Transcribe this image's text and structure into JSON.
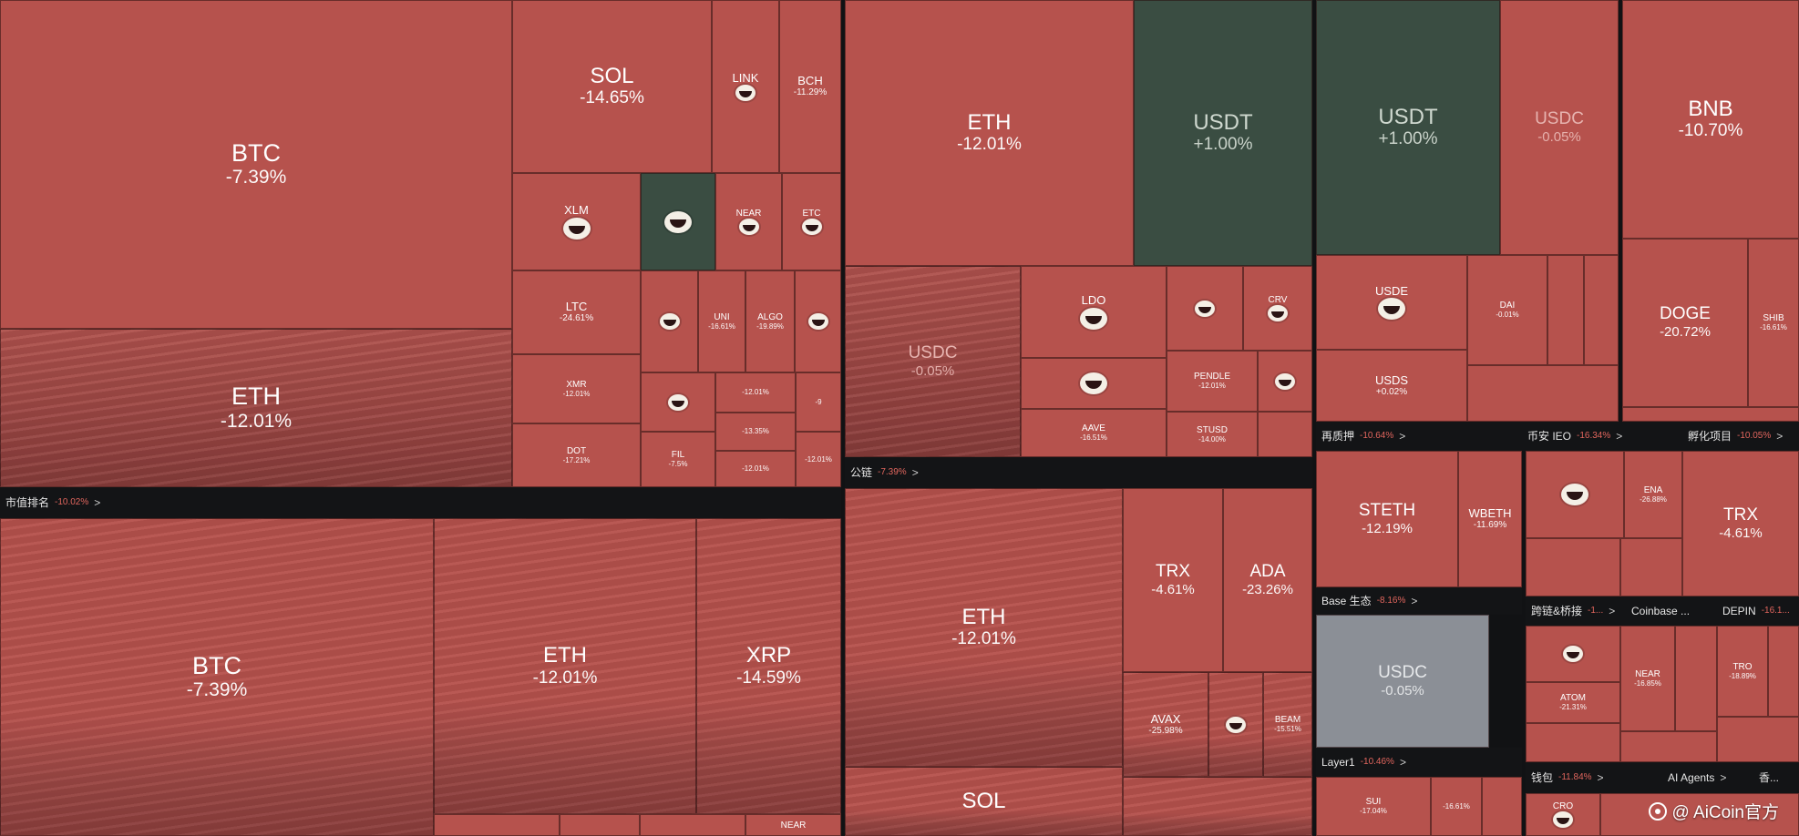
{
  "tiles": [
    {
      "sym": "BTC",
      "pct": "-7.39%"
    },
    {
      "sym": "ETH",
      "pct": "-12.01%"
    },
    {
      "sym": "SOL",
      "pct": "-14.65%"
    },
    {
      "sym": "LINK",
      "pct": ""
    },
    {
      "sym": "BCH",
      "pct": "-11.29%"
    },
    {
      "sym": "XLM",
      "pct": ""
    },
    {
      "sym": "",
      "pct": ""
    },
    {
      "sym": "NEAR",
      "pct": ""
    },
    {
      "sym": "ETC",
      "pct": ""
    },
    {
      "sym": "LTC",
      "pct": "-24.61%"
    },
    {
      "sym": "",
      "pct": ""
    },
    {
      "sym": "UNI",
      "pct": "-16.61%"
    },
    {
      "sym": "ALGO",
      "pct": "-19.89%"
    },
    {
      "sym": "",
      "pct": ""
    },
    {
      "sym": "XMR",
      "pct": "-12.01%"
    },
    {
      "sym": "",
      "pct": ""
    },
    {
      "sym": "",
      "pct": "-12.01%"
    },
    {
      "sym": "",
      "pct": "-9"
    },
    {
      "sym": "DOT",
      "pct": "-17.21%"
    },
    {
      "sym": "FIL",
      "pct": "-7.5%"
    },
    {
      "sym": "",
      "pct": "-13.35%"
    },
    {
      "sym": "",
      "pct": "-12.01%"
    },
    {
      "sym": "",
      "pct": "-12.01%"
    },
    {
      "sym": "",
      "pct": "-12.01%"
    },
    {
      "sym": "BTC",
      "pct": "-7.39%"
    },
    {
      "sym": "ETH",
      "pct": "-12.01%"
    },
    {
      "sym": "XRP",
      "pct": "-14.59%"
    },
    {
      "sym": "",
      "pct": ""
    },
    {
      "sym": "",
      "pct": ""
    },
    {
      "sym": "",
      "pct": ""
    },
    {
      "sym": "NEAR",
      "pct": ""
    },
    {
      "sym": "ETH",
      "pct": "-12.01%"
    },
    {
      "sym": "USDT",
      "pct": "+1.00%"
    },
    {
      "sym": "USDC",
      "pct": "-0.05%"
    },
    {
      "sym": "LDO",
      "pct": ""
    },
    {
      "sym": "",
      "pct": ""
    },
    {
      "sym": "CRV",
      "pct": ""
    },
    {
      "sym": "",
      "pct": ""
    },
    {
      "sym": "PENDLE",
      "pct": "-12.01%"
    },
    {
      "sym": "",
      "pct": ""
    },
    {
      "sym": "AAVE",
      "pct": "-16.51%"
    },
    {
      "sym": "STUSD",
      "pct": "-14.00%"
    },
    {
      "sym": "",
      "pct": ""
    },
    {
      "sym": "ETH",
      "pct": "-12.01%"
    },
    {
      "sym": "TRX",
      "pct": "-4.61%"
    },
    {
      "sym": "ADA",
      "pct": "-23.26%"
    },
    {
      "sym": "AVAX",
      "pct": "-25.98%"
    },
    {
      "sym": "",
      "pct": ""
    },
    {
      "sym": "BEAM",
      "pct": "-15.51%"
    },
    {
      "sym": "SOL",
      "pct": ""
    },
    {
      "sym": "",
      "pct": ""
    },
    {
      "sym": "USDT",
      "pct": "+1.00%"
    },
    {
      "sym": "USDC",
      "pct": "-0.05%"
    },
    {
      "sym": "BNB",
      "pct": "-10.70%"
    },
    {
      "sym": "USDE",
      "pct": ""
    },
    {
      "sym": "DAI",
      "pct": "-0.01%"
    },
    {
      "sym": "USDS",
      "pct": "+0.02%"
    },
    {
      "sym": "",
      "pct": ""
    },
    {
      "sym": "",
      "pct": ""
    },
    {
      "sym": "",
      "pct": ""
    },
    {
      "sym": "DOGE",
      "pct": "-20.72%"
    },
    {
      "sym": "SHIB",
      "pct": "-16.61%"
    },
    {
      "sym": "",
      "pct": ""
    },
    {
      "sym": "STETH",
      "pct": "-12.19%"
    },
    {
      "sym": "WBETH",
      "pct": "-11.69%"
    },
    {
      "sym": "",
      "pct": ""
    },
    {
      "sym": "ENA",
      "pct": "-26.88%"
    },
    {
      "sym": "",
      "pct": ""
    },
    {
      "sym": "",
      "pct": ""
    },
    {
      "sym": "TRX",
      "pct": "-4.61%"
    },
    {
      "sym": "USDC",
      "pct": "-0.05%"
    },
    {
      "sym": "",
      "pct": ""
    },
    {
      "sym": "NEAR",
      "pct": "-16.85%"
    },
    {
      "sym": "",
      "pct": ""
    },
    {
      "sym": "TRO",
      "pct": "-18.89%"
    },
    {
      "sym": "",
      "pct": ""
    },
    {
      "sym": "ATOM",
      "pct": "-21.31%"
    },
    {
      "sym": "",
      "pct": ""
    },
    {
      "sym": "",
      "pct": ""
    },
    {
      "sym": "",
      "pct": ""
    },
    {
      "sym": "",
      "pct": ""
    },
    {
      "sym": "SUI",
      "pct": "-17.04%"
    },
    {
      "sym": "",
      "pct": "-16.61%"
    },
    {
      "sym": "",
      "pct": ""
    },
    {
      "sym": "",
      "pct": ""
    },
    {
      "sym": "CRO",
      "pct": ""
    }
  ],
  "bars": [
    {
      "label": "市值排名",
      "chg": "-10.02%",
      "arrow": ">"
    },
    {
      "label": "公链",
      "chg": "-7.39%",
      "arrow": ">"
    },
    {
      "label": "再质押",
      "chg": "-10.64%",
      "arrow": ">"
    },
    {
      "label": "币安 IEO",
      "chg": "-16.34%",
      "arrow": ">"
    },
    {
      "label": "孵化项目",
      "chg": "-10.05%",
      "arrow": ">"
    },
    {
      "label": "Base 生态",
      "chg": "-8.16%",
      "arrow": ">"
    },
    {
      "label": "跨链&桥接",
      "chg": "-1...",
      "arrow": ">"
    },
    {
      "label": "Coinbase ...",
      "chg": "",
      "arrow": ""
    },
    {
      "label": "DEPIN",
      "chg": "-16.1...",
      "arrow": ""
    },
    {
      "label": "Layer1",
      "chg": "-10.46%",
      "arrow": ">"
    },
    {
      "label": "钱包",
      "chg": "-11.84%",
      "arrow": ">"
    },
    {
      "label": "AI Agents",
      "chg": "",
      "arrow": ">"
    },
    {
      "label": "香...",
      "chg": "",
      "arrow": ""
    }
  ],
  "watermark": {
    "text": "@ AiCoin官方"
  }
}
